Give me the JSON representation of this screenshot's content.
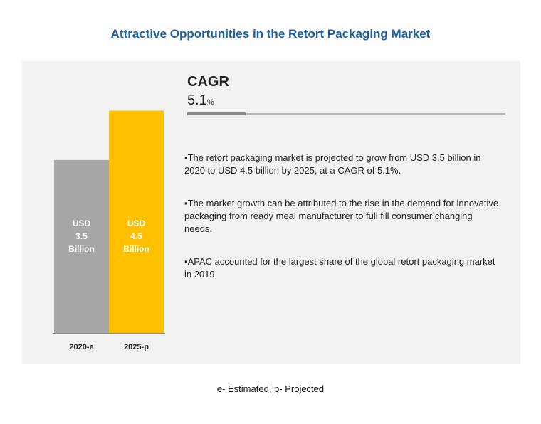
{
  "title": "Attractive Opportunities in the Retort Packaging Market",
  "cagr": {
    "label": "CAGR",
    "value": "5.1",
    "unit": "%"
  },
  "bullets": [
    "▪The retort packaging market is projected to grow from USD 3.5 billion in 2020 to USD 4.5 billion by 2025, at a CAGR of 5.1%.",
    "▪The market growth can be attributed to the rise in the demand for innovative packaging from ready meal manufacturer to full fill consumer changing needs.",
    "▪APAC accounted for the largest share of the global retort  packaging market in 2019."
  ],
  "footnote": "e- Estimated, p- Projected",
  "chart_data": {
    "type": "bar",
    "categories": [
      "2020-e",
      "2025-p"
    ],
    "values": [
      3.5,
      4.5
    ],
    "bar_labels": [
      [
        "USD",
        "3.5",
        "Billion"
      ],
      [
        "USD",
        "4.5",
        "Billion"
      ]
    ],
    "colors": [
      "#a6a6a6",
      "#ffc000"
    ],
    "ylim": [
      0,
      5.5
    ]
  }
}
